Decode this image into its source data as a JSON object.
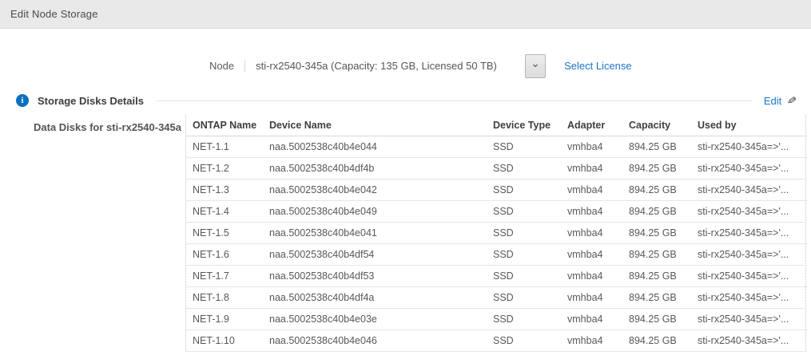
{
  "header": {
    "title": "Edit Node Storage"
  },
  "node": {
    "label": "Node",
    "selected_value": "sti-rx2540-345a (Capacity: 135 GB, Licensed 50 TB)",
    "dropdown_icon": "chevron-down-icon",
    "select_license_label": "Select License"
  },
  "section": {
    "info_icon": "info-icon",
    "title": "Storage Disks Details",
    "edit_label": "Edit",
    "edit_icon": "pencil-icon"
  },
  "table": {
    "caption": "Data Disks for sti-rx2540-345a",
    "columns": [
      "ONTAP Name",
      "Device Name",
      "Device Type",
      "Adapter",
      "Capacity",
      "Used by"
    ],
    "rows": [
      [
        "NET-1.1",
        "naa.5002538c40b4e044",
        "SSD",
        "vmhba4",
        "894.25 GB",
        "sti-rx2540-345a=>'..."
      ],
      [
        "NET-1.2",
        "naa.5002538c40b4df4b",
        "SSD",
        "vmhba4",
        "894.25 GB",
        "sti-rx2540-345a=>'..."
      ],
      [
        "NET-1.3",
        "naa.5002538c40b4e042",
        "SSD",
        "vmhba4",
        "894.25 GB",
        "sti-rx2540-345a=>'..."
      ],
      [
        "NET-1.4",
        "naa.5002538c40b4e049",
        "SSD",
        "vmhba4",
        "894.25 GB",
        "sti-rx2540-345a=>'..."
      ],
      [
        "NET-1.5",
        "naa.5002538c40b4e041",
        "SSD",
        "vmhba4",
        "894.25 GB",
        "sti-rx2540-345a=>'..."
      ],
      [
        "NET-1.6",
        "naa.5002538c40b4df54",
        "SSD",
        "vmhba4",
        "894.25 GB",
        "sti-rx2540-345a=>'..."
      ],
      [
        "NET-1.7",
        "naa.5002538c40b4df53",
        "SSD",
        "vmhba4",
        "894.25 GB",
        "sti-rx2540-345a=>'..."
      ],
      [
        "NET-1.8",
        "naa.5002538c40b4df4a",
        "SSD",
        "vmhba4",
        "894.25 GB",
        "sti-rx2540-345a=>'..."
      ],
      [
        "NET-1.9",
        "naa.5002538c40b4e03e",
        "SSD",
        "vmhba4",
        "894.25 GB",
        "sti-rx2540-345a=>'..."
      ],
      [
        "NET-1.10",
        "naa.5002538c40b4e046",
        "SSD",
        "vmhba4",
        "894.25 GB",
        "sti-rx2540-345a=>'..."
      ]
    ]
  },
  "colors": {
    "link_blue": "#1b74c5",
    "info_blue": "#0a6fc2",
    "topbar_bg": "#e9e9e9"
  }
}
